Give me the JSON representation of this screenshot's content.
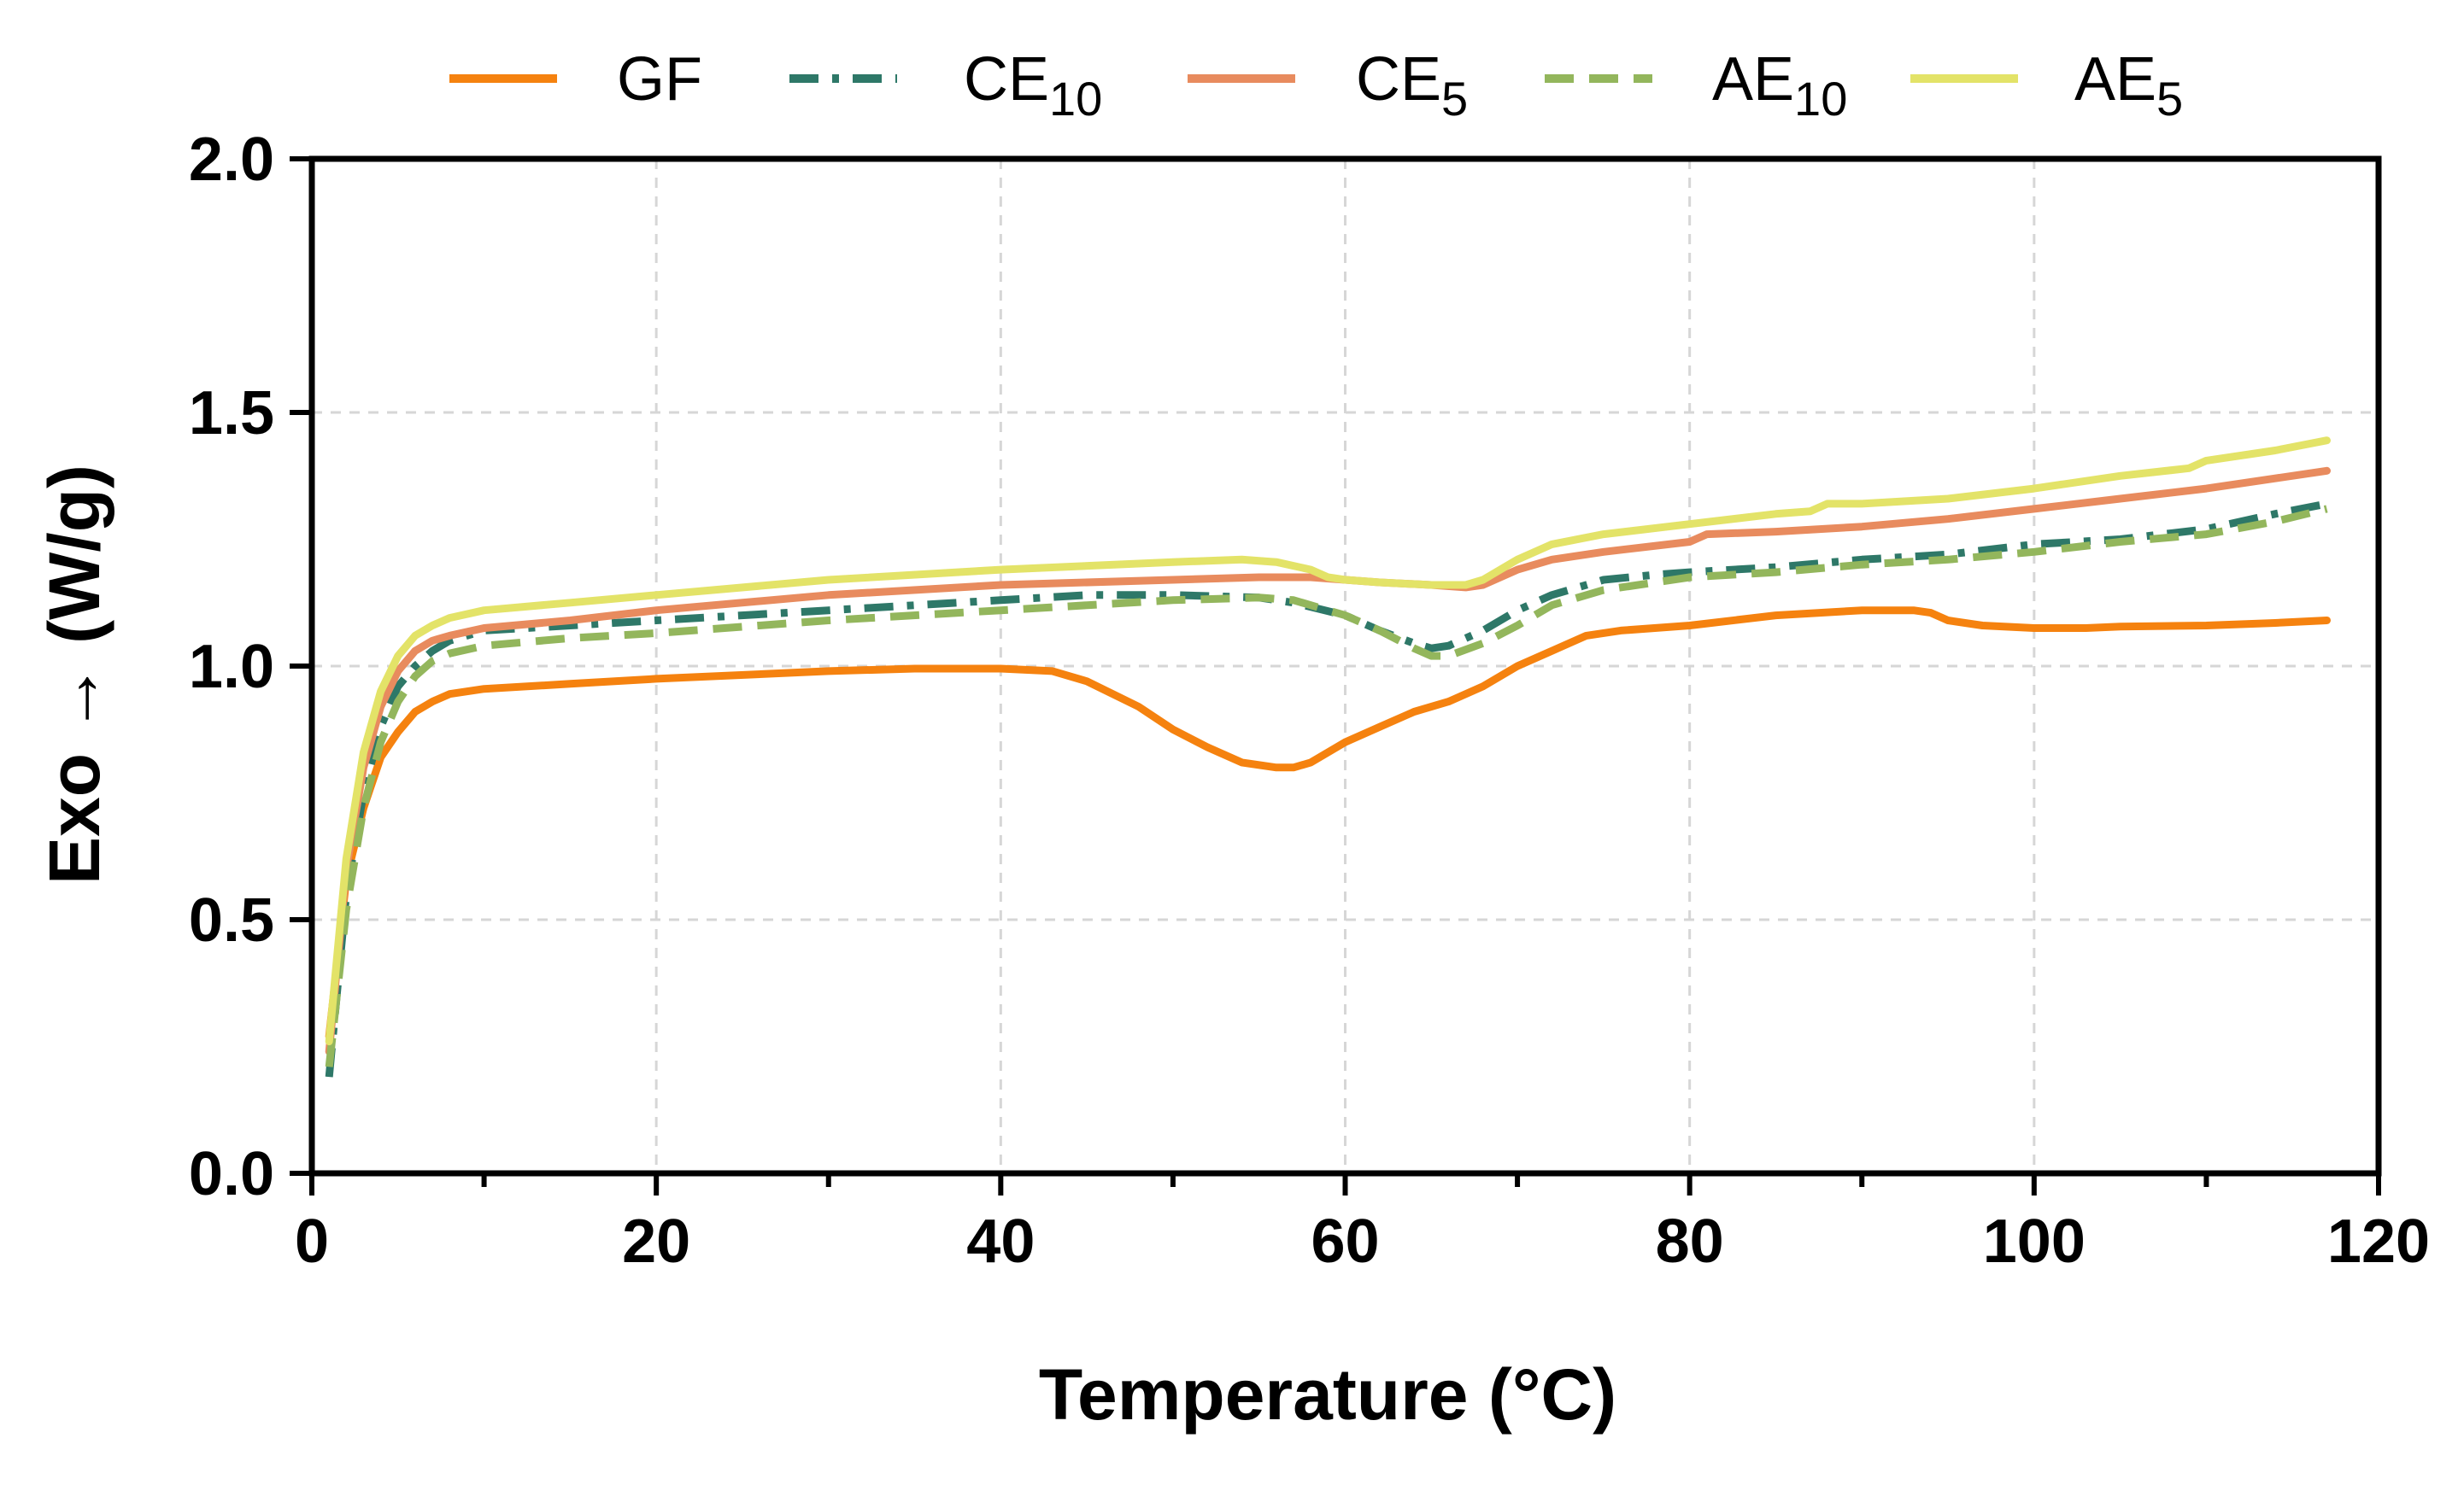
{
  "chart_data": {
    "type": "line",
    "title": "",
    "xlabel": "Temperature (°C)",
    "ylabel_prefix": "Exo",
    "ylabel_suffix": "(W/g)",
    "xlim": [
      0,
      120
    ],
    "ylim": [
      0,
      2.0
    ],
    "xticks": [
      0,
      20,
      40,
      60,
      80,
      100,
      120
    ],
    "xtick_labels": [
      "0",
      "20",
      "40",
      "60",
      "80",
      "100",
      "120"
    ],
    "yticks": [
      0,
      0.5,
      1.0,
      1.5,
      2.0
    ],
    "ytick_labels": [
      "0.0",
      "0.5",
      "1.0",
      "1.5",
      "2.0"
    ],
    "grid": true,
    "legend_position": "top",
    "series": [
      {
        "name": "GF",
        "base": "GF",
        "sub": "",
        "color": "#F5820F",
        "dash": "solid",
        "x": [
          1,
          2,
          3,
          4,
          5,
          6,
          7,
          8,
          10,
          15,
          20,
          30,
          35,
          40,
          43,
          45,
          48,
          50,
          52,
          54,
          56,
          57,
          58,
          60,
          62,
          64,
          66,
          68,
          70,
          72,
          74,
          76,
          80,
          85,
          90,
          93,
          94,
          95,
          97,
          100,
          103,
          105,
          110,
          114,
          117
        ],
        "y": [
          0.27,
          0.58,
          0.72,
          0.82,
          0.87,
          0.91,
          0.93,
          0.945,
          0.955,
          0.965,
          0.975,
          0.99,
          0.995,
          0.995,
          0.99,
          0.97,
          0.92,
          0.875,
          0.84,
          0.81,
          0.8,
          0.8,
          0.81,
          0.85,
          0.88,
          0.91,
          0.93,
          0.96,
          1.0,
          1.03,
          1.06,
          1.07,
          1.08,
          1.1,
          1.11,
          1.11,
          1.105,
          1.09,
          1.08,
          1.075,
          1.075,
          1.078,
          1.08,
          1.085,
          1.09
        ]
      },
      {
        "name": "CE10",
        "base": "CE",
        "sub": "10",
        "color": "#2E7868",
        "dash": "dashdot",
        "x": [
          1,
          2,
          3,
          4,
          5,
          6,
          7,
          8,
          10,
          15,
          20,
          30,
          40,
          45,
          50,
          55,
          57,
          60,
          62,
          64,
          65,
          66,
          68,
          70,
          72,
          75,
          78,
          80,
          85,
          90,
          95,
          100,
          105,
          110,
          114,
          117
        ],
        "y": [
          0.19,
          0.55,
          0.75,
          0.88,
          0.96,
          1.0,
          1.03,
          1.05,
          1.07,
          1.08,
          1.09,
          1.11,
          1.13,
          1.14,
          1.14,
          1.135,
          1.125,
          1.1,
          1.07,
          1.045,
          1.035,
          1.04,
          1.07,
          1.11,
          1.14,
          1.17,
          1.18,
          1.185,
          1.195,
          1.21,
          1.22,
          1.24,
          1.25,
          1.27,
          1.3,
          1.32
        ]
      },
      {
        "name": "CE5",
        "base": "CE",
        "sub": "5",
        "color": "#E88B5E",
        "dash": "solid",
        "x": [
          1,
          2,
          3,
          4,
          5,
          6,
          7,
          8,
          10,
          15,
          20,
          30,
          40,
          50,
          55,
          58,
          60,
          62,
          65,
          67,
          68,
          70,
          72,
          75,
          80,
          81,
          85,
          90,
          95,
          100,
          105,
          110,
          114,
          117
        ],
        "y": [
          0.24,
          0.6,
          0.8,
          0.92,
          0.99,
          1.03,
          1.05,
          1.06,
          1.075,
          1.09,
          1.11,
          1.14,
          1.16,
          1.17,
          1.175,
          1.175,
          1.17,
          1.165,
          1.16,
          1.155,
          1.16,
          1.19,
          1.21,
          1.225,
          1.245,
          1.26,
          1.265,
          1.275,
          1.29,
          1.31,
          1.33,
          1.35,
          1.37,
          1.385
        ]
      },
      {
        "name": "AE10",
        "base": "AE",
        "sub": "10",
        "color": "#93B65C",
        "dash": "dashed",
        "x": [
          1,
          2,
          3,
          4,
          5,
          6,
          7,
          8,
          10,
          15,
          20,
          30,
          40,
          50,
          55,
          57,
          60,
          62,
          64,
          65,
          66,
          68,
          70,
          72,
          75,
          78,
          80,
          85,
          90,
          95,
          100,
          105,
          110,
          114,
          117
        ],
        "y": [
          0.21,
          0.52,
          0.72,
          0.85,
          0.93,
          0.98,
          1.01,
          1.025,
          1.04,
          1.055,
          1.065,
          1.09,
          1.11,
          1.13,
          1.135,
          1.13,
          1.1,
          1.07,
          1.035,
          1.02,
          1.02,
          1.045,
          1.08,
          1.12,
          1.15,
          1.165,
          1.175,
          1.185,
          1.2,
          1.21,
          1.225,
          1.245,
          1.26,
          1.285,
          1.31
        ]
      },
      {
        "name": "AE5",
        "base": "AE",
        "sub": "5",
        "color": "#E3E368",
        "dash": "solid",
        "x": [
          1,
          2,
          3,
          4,
          5,
          6,
          7,
          8,
          10,
          15,
          20,
          30,
          40,
          50,
          54,
          56,
          58,
          59,
          60,
          62,
          65,
          67,
          68,
          70,
          72,
          75,
          80,
          85,
          87,
          88,
          90,
          95,
          100,
          105,
          109,
          110,
          114,
          117
        ],
        "y": [
          0.26,
          0.62,
          0.83,
          0.95,
          1.02,
          1.06,
          1.08,
          1.095,
          1.11,
          1.125,
          1.14,
          1.17,
          1.19,
          1.205,
          1.21,
          1.205,
          1.19,
          1.175,
          1.17,
          1.165,
          1.16,
          1.16,
          1.17,
          1.21,
          1.24,
          1.26,
          1.28,
          1.3,
          1.305,
          1.32,
          1.32,
          1.33,
          1.35,
          1.375,
          1.39,
          1.405,
          1.425,
          1.445
        ]
      }
    ]
  }
}
